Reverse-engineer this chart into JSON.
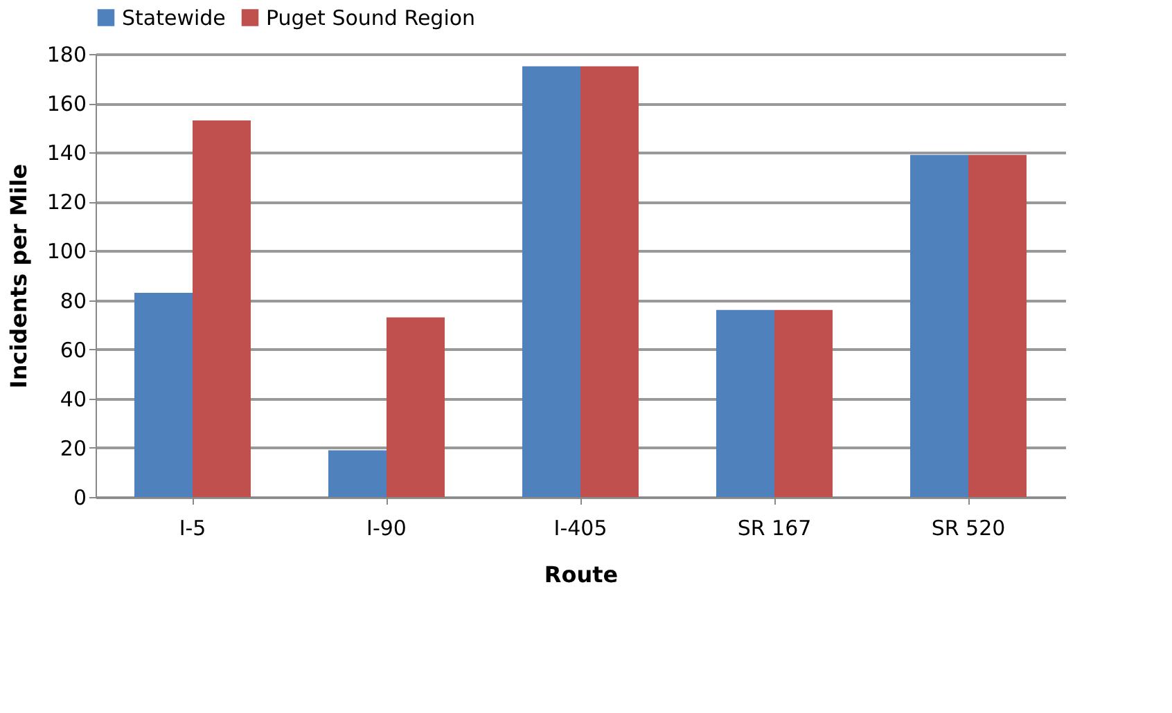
{
  "chart_data": {
    "type": "bar",
    "xlabel": "Route",
    "ylabel": "Incidents per Mile",
    "categories": [
      "I-5",
      "I-90",
      "I-405",
      "SR 167",
      "SR 520"
    ],
    "series": [
      {
        "name": "Statewide",
        "color": "#4f81bd",
        "values": [
          83,
          19,
          175,
          76,
          139
        ]
      },
      {
        "name": "Puget Sound Region",
        "color": "#c0504d",
        "values": [
          153,
          73,
          175,
          76,
          139
        ]
      }
    ],
    "ylim": [
      0,
      180
    ],
    "yticks": [
      0,
      20,
      40,
      60,
      80,
      100,
      120,
      140,
      160,
      180
    ],
    "grid": "y",
    "legend": "top"
  }
}
